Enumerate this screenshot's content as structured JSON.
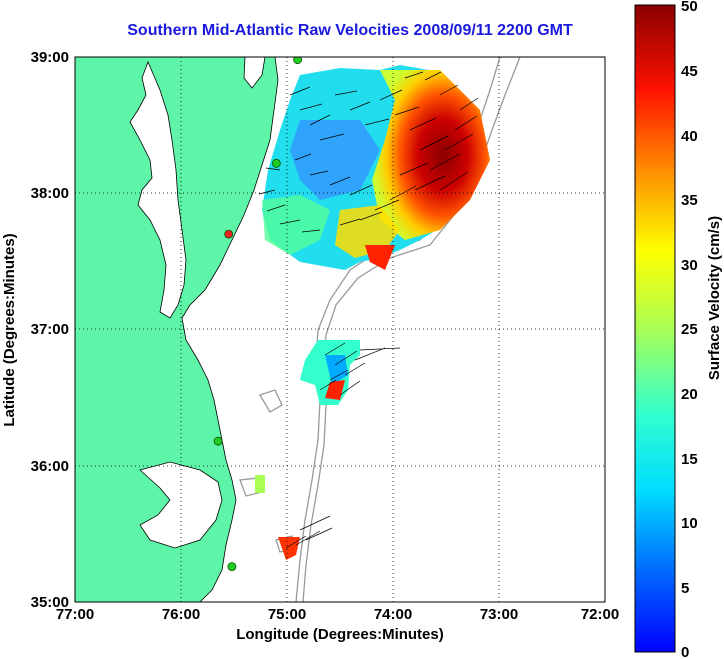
{
  "title": "Southern Mid-Atlantic Raw Velocities 2008/09/11 2200 GMT",
  "axes": {
    "xlabel": "Longitude (Degrees:Minutes)",
    "ylabel": "Latitude (Degrees:Minutes)",
    "x_ticks": [
      "77:00",
      "76:00",
      "75:00",
      "74:00",
      "73:00",
      "72:00"
    ],
    "y_ticks": [
      "39:00",
      "38:00",
      "37:00",
      "36:00",
      "35:00"
    ],
    "x_range_deg_w": [
      77,
      72
    ],
    "y_range_deg_n": [
      35,
      39
    ],
    "grid": "dotted"
  },
  "colorbar": {
    "label": "Surface Velocity (cm/s)",
    "ticks": [
      "50",
      "45",
      "40",
      "35",
      "30",
      "25",
      "20",
      "15",
      "10",
      "5",
      "0"
    ],
    "range": [
      0,
      50
    ],
    "colormap": "jet"
  },
  "colors": {
    "land": "#5ff5a8",
    "water": "#ffffff",
    "title": "#1a1adc",
    "coast": "#000000",
    "bathymetry": "#999999",
    "station": "#22cc22"
  },
  "map_data": {
    "stations": [
      {
        "lon": 74.9,
        "lat": 38.98,
        "color": "#22cc22"
      },
      {
        "lon": 75.1,
        "lat": 38.22,
        "color": "#22cc22"
      },
      {
        "lon": 75.55,
        "lat": 37.7,
        "color": "#ee2222"
      },
      {
        "lon": 75.65,
        "lat": 36.18,
        "color": "#22cc22"
      },
      {
        "lon": 75.52,
        "lat": 35.26,
        "color": "#22cc22"
      }
    ]
  }
}
